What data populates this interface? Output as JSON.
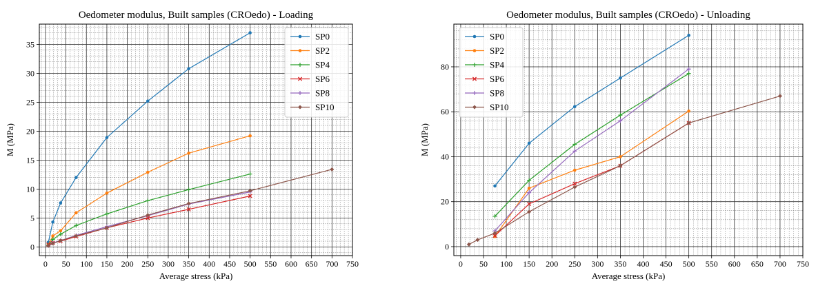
{
  "chart_data": [
    {
      "type": "line",
      "title": "Oedometer modulus, Built samples (CROedo) - Loading",
      "xlabel": "Average stress (kPa)",
      "ylabel": "M (MPa)",
      "xlim": [
        -15,
        750
      ],
      "ylim": [
        -1.5,
        38.5
      ],
      "xticks": [
        0,
        50,
        100,
        150,
        200,
        250,
        300,
        350,
        400,
        450,
        500,
        550,
        600,
        650,
        700,
        750
      ],
      "yticks": [
        0,
        5,
        10,
        15,
        20,
        25,
        30,
        35
      ],
      "xminor": 10,
      "yminor": 1,
      "grid": true,
      "legend": "top-right",
      "series": [
        {
          "name": "SP0",
          "marker": "dot",
          "x": [
            7,
            18,
            37,
            75,
            150,
            250,
            350,
            500
          ],
          "y": [
            0.8,
            4.3,
            7.6,
            12.0,
            18.9,
            25.2,
            30.8,
            37.0
          ]
        },
        {
          "name": "SP2",
          "marker": "dot",
          "x": [
            7,
            18,
            37,
            75,
            150,
            250,
            350,
            500
          ],
          "y": [
            0.4,
            1.9,
            2.8,
            5.9,
            9.3,
            12.9,
            16.2,
            19.2
          ]
        },
        {
          "name": "SP4",
          "marker": "plus",
          "x": [
            7,
            18,
            37,
            75,
            150,
            250,
            350,
            500
          ],
          "y": [
            0.3,
            1.3,
            2.2,
            3.7,
            5.7,
            8.0,
            9.9,
            12.6
          ]
        },
        {
          "name": "SP6",
          "marker": "x",
          "x": [
            7,
            18,
            37,
            75,
            150,
            250,
            350,
            500
          ],
          "y": [
            0.4,
            0.7,
            1.0,
            1.8,
            3.3,
            5.0,
            6.5,
            8.8
          ]
        },
        {
          "name": "SP8",
          "marker": "plus",
          "x": [
            7,
            18,
            37,
            75,
            150,
            250,
            350,
            500
          ],
          "y": [
            0.2,
            0.7,
            1.1,
            2.0,
            3.5,
            5.4,
            7.4,
            9.5
          ]
        },
        {
          "name": "SP10",
          "marker": "diamond",
          "x": [
            7,
            18,
            37,
            75,
            150,
            250,
            350,
            500,
            700
          ],
          "y": [
            0.2,
            0.6,
            1.1,
            1.9,
            3.3,
            5.5,
            7.5,
            9.7,
            13.4
          ]
        }
      ]
    },
    {
      "type": "line",
      "title": "Oedometer modulus, Built samples (CROedo) - Unloading",
      "xlabel": "Average stress (kPa)",
      "ylabel": "M (MPa)",
      "xlim": [
        -15,
        750
      ],
      "ylim": [
        -4,
        99
      ],
      "xticks": [
        0,
        50,
        100,
        150,
        200,
        250,
        300,
        350,
        400,
        450,
        500,
        550,
        600,
        650,
        700,
        750
      ],
      "yticks": [
        0,
        20,
        40,
        60,
        80
      ],
      "xminor": 10,
      "yminor": 4,
      "grid": true,
      "legend": "top-left",
      "series": [
        {
          "name": "SP0",
          "marker": "dot",
          "x": [
            75,
            150,
            250,
            350,
            500
          ],
          "y": [
            27.0,
            46.0,
            62.3,
            75.0,
            94.0
          ]
        },
        {
          "name": "SP2",
          "marker": "dot",
          "x": [
            75,
            150,
            250,
            350,
            500
          ],
          "y": [
            4.5,
            26.0,
            34.0,
            40.0,
            60.3
          ]
        },
        {
          "name": "SP4",
          "marker": "plus",
          "x": [
            75,
            150,
            250,
            350,
            500
          ],
          "y": [
            13.5,
            29.5,
            45.5,
            58.5,
            77.0
          ]
        },
        {
          "name": "SP6",
          "marker": "x",
          "x": [
            75,
            150,
            250,
            350,
            500
          ],
          "y": [
            4.8,
            19.0,
            28.0,
            36.0,
            55.0
          ]
        },
        {
          "name": "SP8",
          "marker": "plus",
          "x": [
            75,
            150,
            250,
            350,
            500
          ],
          "y": [
            7.0,
            24.0,
            42.5,
            56.0,
            79.0
          ]
        },
        {
          "name": "SP10",
          "marker": "diamond",
          "x": [
            18,
            37,
            75,
            150,
            250,
            350,
            500,
            700
          ],
          "y": [
            1.0,
            3.0,
            6.0,
            15.5,
            26.5,
            36.0,
            55.0,
            67.0
          ]
        }
      ]
    }
  ],
  "colors": {
    "SP0": "#1f77b4",
    "SP2": "#ff7f0e",
    "SP4": "#2ca02c",
    "SP6": "#d62728",
    "SP8": "#9467bd",
    "SP10": "#8c564b"
  }
}
